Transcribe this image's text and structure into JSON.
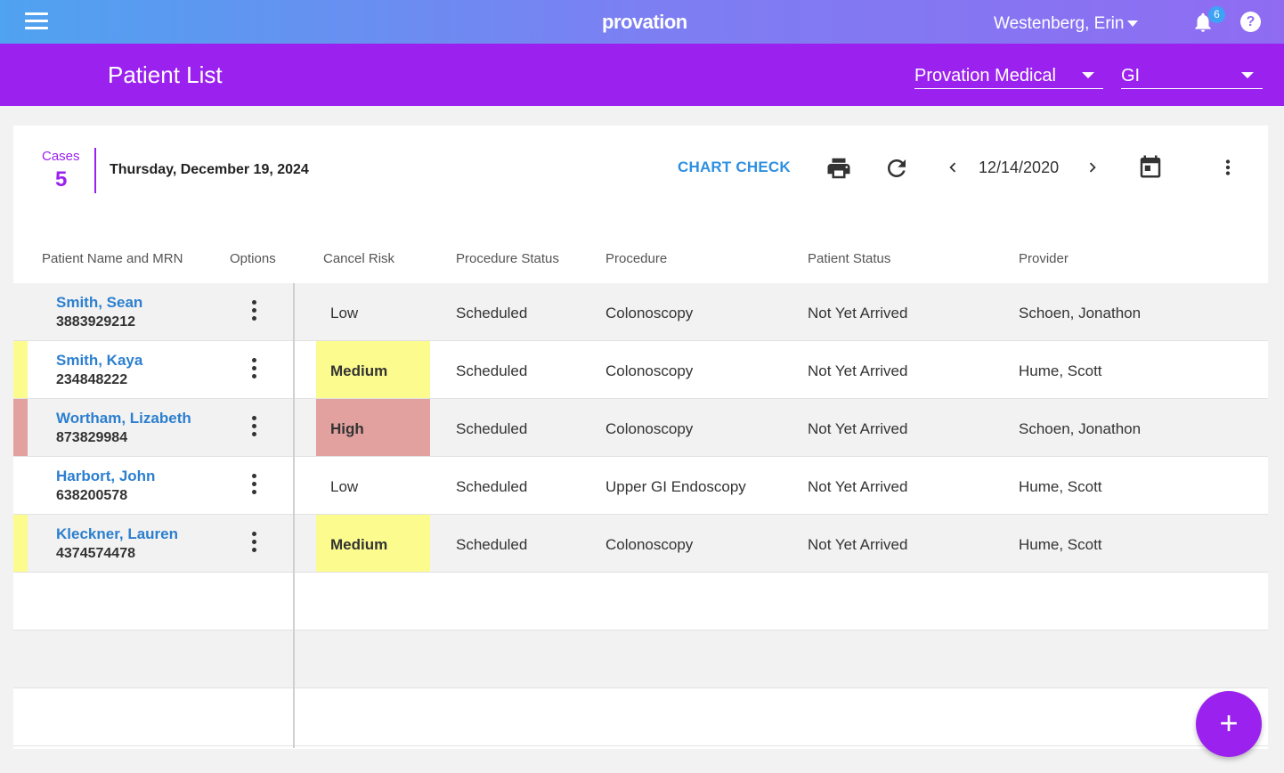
{
  "topbar": {
    "logo": "provation",
    "user": "Westenberg, Erin",
    "notification_count": "6",
    "help_label": "?"
  },
  "subbar": {
    "title": "Patient List",
    "org_select": "Provation Medical",
    "dept_select": "GI"
  },
  "toolbar": {
    "cases_label": "Cases",
    "cases_count": "5",
    "date": "Thursday, December 19, 2024",
    "chart_check": "CHART CHECK",
    "nav_date": "12/14/2020"
  },
  "table": {
    "headers": [
      "Patient Name and MRN",
      "Options",
      "Cancel Risk",
      "Procedure Status",
      "Procedure",
      "Patient Status",
      "Provider"
    ],
    "rows": [
      {
        "name": "Smith, Sean",
        "mrn": "3883929212",
        "risk": "Low",
        "procedure_status": "Scheduled",
        "procedure": "Colonoscopy",
        "patient_status": "Not Yet Arrived",
        "provider": "Schoen, Jonathon"
      },
      {
        "name": "Smith, Kaya",
        "mrn": "234848222",
        "risk": "Medium",
        "procedure_status": "Scheduled",
        "procedure": "Colonoscopy",
        "patient_status": "Not Yet Arrived",
        "provider": "Hume, Scott"
      },
      {
        "name": "Wortham, Lizabeth",
        "mrn": "873829984",
        "risk": "High",
        "procedure_status": "Scheduled",
        "procedure": "Colonoscopy",
        "patient_status": "Not Yet Arrived",
        "provider": "Schoen, Jonathon"
      },
      {
        "name": "Harbort, John",
        "mrn": "638200578",
        "risk": "Low",
        "procedure_status": "Scheduled",
        "procedure": "Upper GI Endoscopy",
        "patient_status": "Not Yet Arrived",
        "provider": "Hume, Scott"
      },
      {
        "name": "Kleckner, Lauren",
        "mrn": "4374574478",
        "risk": "Medium",
        "procedure_status": "Scheduled",
        "procedure": "Colonoscopy",
        "patient_status": "Not Yet Arrived",
        "provider": "Hume, Scott"
      }
    ]
  },
  "colors": {
    "brand_purple": "#9b22ee",
    "link_blue": "#2c7fcf",
    "risk_medium": "#fbfb8e",
    "risk_high": "#e2a19f"
  },
  "fab": {
    "label": "+"
  }
}
